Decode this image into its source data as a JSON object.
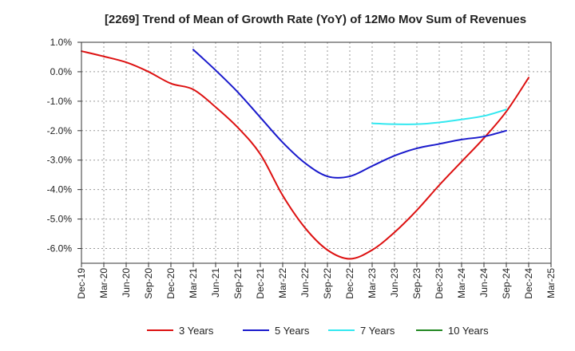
{
  "chart_data": {
    "type": "line",
    "title": "[2269]  Trend of Mean of Growth Rate (YoY) of 12Mo Mov Sum of Revenues",
    "xlabel": "",
    "ylabel": "",
    "ylim": [
      -6.5,
      1.0
    ],
    "yticks": [
      1.0,
      0.0,
      -1.0,
      -2.0,
      -3.0,
      -4.0,
      -5.0,
      -6.0
    ],
    "ytick_labels": [
      "1.0%",
      "0.0%",
      "-1.0%",
      "-2.0%",
      "-3.0%",
      "-4.0%",
      "-5.0%",
      "-6.0%"
    ],
    "x_tick_labels": [
      "Dec-19",
      "Mar-20",
      "Jun-20",
      "Sep-20",
      "Dec-20",
      "Mar-21",
      "Jun-21",
      "Sep-21",
      "Dec-21",
      "Mar-22",
      "Jun-22",
      "Sep-22",
      "Dec-22",
      "Mar-23",
      "Jun-23",
      "Sep-23",
      "Dec-23",
      "Mar-24",
      "Jun-24",
      "Sep-24",
      "Dec-24",
      "Mar-25"
    ],
    "grid": true,
    "legend_position": "bottom",
    "series": [
      {
        "name": "3 Years",
        "color": "#dd1111",
        "x_start_index": 0,
        "values": [
          0.7,
          0.52,
          0.32,
          0.0,
          -0.4,
          -0.6,
          -1.2,
          -1.9,
          -2.8,
          -4.2,
          -5.3,
          -6.05,
          -6.35,
          -6.05,
          -5.45,
          -4.7,
          -3.85,
          -3.05,
          -2.25,
          -1.35,
          -0.2
        ]
      },
      {
        "name": "5 Years",
        "color": "#1a1acc",
        "x_start_index": 5,
        "values": [
          0.75,
          0.05,
          -0.7,
          -1.55,
          -2.4,
          -3.1,
          -3.55,
          -3.55,
          -3.2,
          -2.85,
          -2.6,
          -2.45,
          -2.3,
          -2.2,
          -2.0
        ]
      },
      {
        "name": "7 Years",
        "color": "#33e8f0",
        "x_start_index": 13,
        "values": [
          -1.75,
          -1.78,
          -1.78,
          -1.72,
          -1.62,
          -1.5,
          -1.28
        ]
      },
      {
        "name": "10 Years",
        "color": "#228822",
        "x_start_index": 0,
        "values": []
      }
    ]
  }
}
